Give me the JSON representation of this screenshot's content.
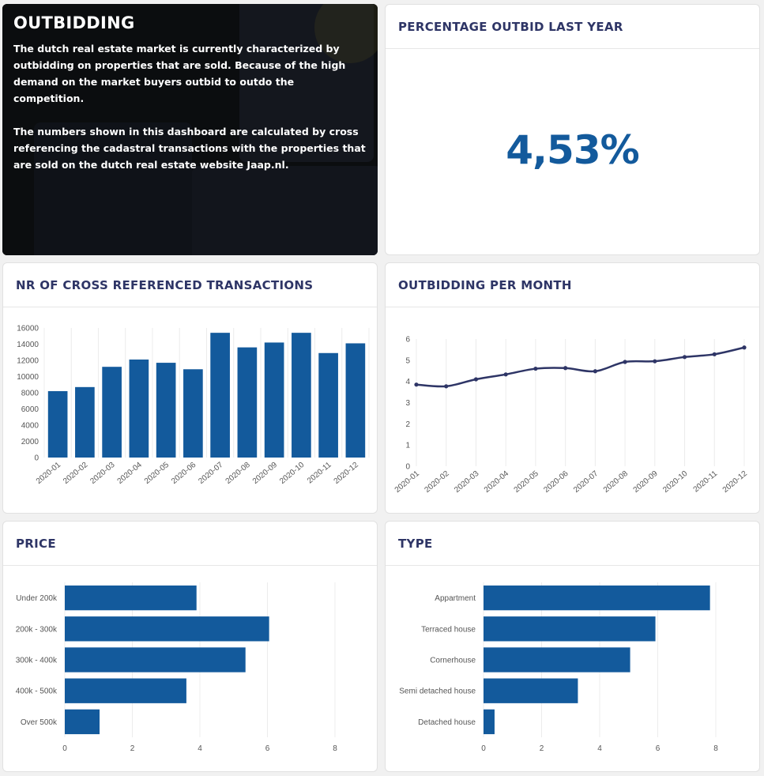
{
  "intro": {
    "title": "OUTBIDDING",
    "paragraph1": "The dutch real estate market is currently characterized by outbidding on properties that are sold. Because of the high demand on the market buyers outbid to outdo the competition.",
    "paragraph2": "The numbers shown in this dashboard are calculated by cross referencing the cadastral transactions with the properties that are sold on the dutch real estate website Jaap.nl."
  },
  "kpi": {
    "title": "PERCENTAGE OUTBID LAST YEAR",
    "value": "4,53%"
  },
  "transactions": {
    "title": "NR OF CROSS REFERENCED TRANSACTIONS"
  },
  "monthly": {
    "title": "OUTBIDDING PER MONTH"
  },
  "price": {
    "title": "PRICE"
  },
  "type": {
    "title": "TYPE"
  },
  "colors": {
    "bar": "#135a9c",
    "line": "#2e3566",
    "title": "#2e3566"
  },
  "chart_data": [
    {
      "id": "transactions",
      "type": "bar",
      "categories": [
        "2020-01",
        "2020-02",
        "2020-03",
        "2020-04",
        "2020-05",
        "2020-06",
        "2020-07",
        "2020-08",
        "2020-09",
        "2020-10",
        "2020-11",
        "2020-12"
      ],
      "values": [
        8200,
        8700,
        11200,
        12100,
        11700,
        10900,
        15400,
        13600,
        14200,
        15400,
        12900,
        14100
      ],
      "yticks": [
        0,
        2000,
        4000,
        6000,
        8000,
        10000,
        12000,
        14000,
        16000
      ],
      "ylim": [
        0,
        16000
      ],
      "grid": true
    },
    {
      "id": "monthly",
      "type": "line",
      "categories": [
        "2020-01",
        "2020-02",
        "2020-03",
        "2020-04",
        "2020-05",
        "2020-06",
        "2020-07",
        "2020-08",
        "2020-09",
        "2020-10",
        "2020-11",
        "2020-12"
      ],
      "values": [
        3.85,
        3.77,
        4.1,
        4.33,
        4.6,
        4.63,
        4.48,
        4.92,
        4.95,
        5.15,
        5.28,
        5.6
      ],
      "yticks": [
        0,
        1,
        2,
        3,
        4,
        5,
        6
      ],
      "ylim": [
        0,
        6
      ],
      "grid": true
    },
    {
      "id": "price",
      "type": "bar",
      "orientation": "horizontal",
      "categories": [
        "Under 200k",
        "200k - 300k",
        "300k - 400k",
        "400k - 500k",
        "Over 500k"
      ],
      "values": [
        3.9,
        6.05,
        5.35,
        3.6,
        1.03
      ],
      "xticks": [
        0,
        2,
        4,
        6,
        8
      ],
      "xlim": [
        0,
        8
      ],
      "grid": true
    },
    {
      "id": "type",
      "type": "bar",
      "orientation": "horizontal",
      "categories": [
        "Appartment",
        "Terraced house",
        "Cornerhouse",
        "Semi detached house",
        "Detached house"
      ],
      "values": [
        7.8,
        5.92,
        5.05,
        3.25,
        0.38
      ],
      "xticks": [
        0,
        2,
        4,
        6,
        8
      ],
      "xlim": [
        0,
        8
      ],
      "grid": true
    }
  ]
}
